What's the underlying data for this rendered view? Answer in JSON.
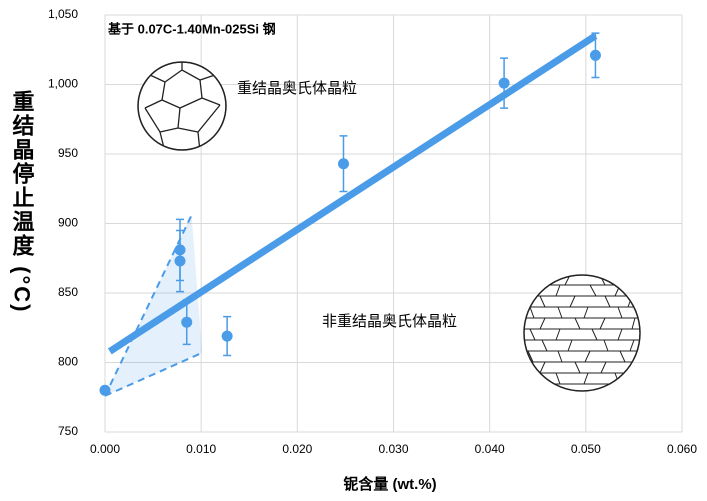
{
  "chart_data": {
    "type": "scatter",
    "title": "基于 0.07C-1.40Mn-025Si 钢",
    "x_label": "铌含量 (wt.%)",
    "y_label": "重结晶停止温度 (°C)",
    "annotations": [
      "重结晶奥氏体晶粒",
      "非重结晶奥氏体晶粒"
    ],
    "xlim": [
      0,
      0.06
    ],
    "xticks": [
      {
        "value": 0,
        "label": "0.000"
      },
      {
        "value": 0.01,
        "label": "0.010"
      },
      {
        "value": 0.02,
        "label": "0.020"
      },
      {
        "value": 0.03,
        "label": "0.030"
      },
      {
        "value": 0.04,
        "label": "0.040"
      },
      {
        "value": 0.05,
        "label": "0.050"
      },
      {
        "value": 0.06,
        "label": "0.060"
      }
    ],
    "ylim": [
      750,
      1050
    ],
    "yticks": [
      750,
      800,
      850,
      900,
      950,
      {
        "value": 1000,
        "label": "1,000"
      },
      {
        "value": 1050,
        "label": "1,050"
      }
    ],
    "grid": true,
    "series": [
      {
        "color": "#4a9be8",
        "x": [
          0.0,
          0.0078,
          0.0078,
          0.0085,
          0.0127,
          0.0248,
          0.0415,
          0.051
        ],
        "values": [
          780,
          881,
          873,
          829,
          819,
          943,
          1001,
          1021
        ],
        "errors": [
          0,
          22,
          22,
          16,
          14,
          20,
          18,
          16
        ]
      }
    ],
    "fit_line": {
      "color": "#4a9be8",
      "x": [
        0.0005,
        0.051
      ],
      "values": [
        808,
        1035
      ]
    },
    "shaded_region": {
      "color": "#4a9be8",
      "x": [
        0.0,
        0.009,
        0.0101
      ],
      "values": [
        776,
        906,
        807
      ]
    }
  }
}
